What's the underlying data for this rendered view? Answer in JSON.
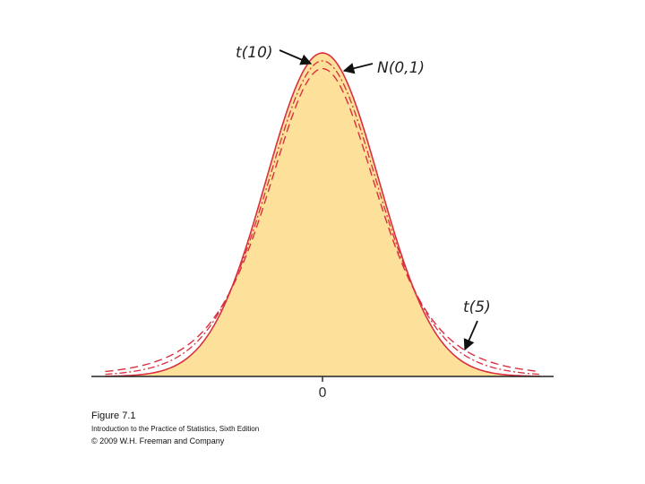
{
  "chart_data": {
    "type": "line",
    "title": "",
    "xlabel": "",
    "ylabel": "",
    "x_tick_labels": [
      "0"
    ],
    "series": [
      {
        "name": "N(0,1)",
        "df": null,
        "style": "solid",
        "fill": true,
        "peak_density": 0.399
      },
      {
        "name": "t(10)",
        "df": 10,
        "style": "dash-dot",
        "fill": false,
        "peak_density": 0.389
      },
      {
        "name": "t(5)",
        "df": 5,
        "style": "dashed",
        "fill": false,
        "peak_density": 0.38
      }
    ],
    "annotations": [
      "t(10)",
      "N(0,1)",
      "t(5)"
    ],
    "grid": false,
    "legend": "none"
  },
  "colors": {
    "fill": "#fde19a",
    "curve": "#d9303f",
    "axis": "#222222",
    "arrow": "#111111"
  },
  "caption": {
    "title": "Figure 7.1",
    "book": "Introduction to the Practice of Statistics, Sixth Edition",
    "copyright": "© 2009 W.H. Freeman and Company"
  }
}
